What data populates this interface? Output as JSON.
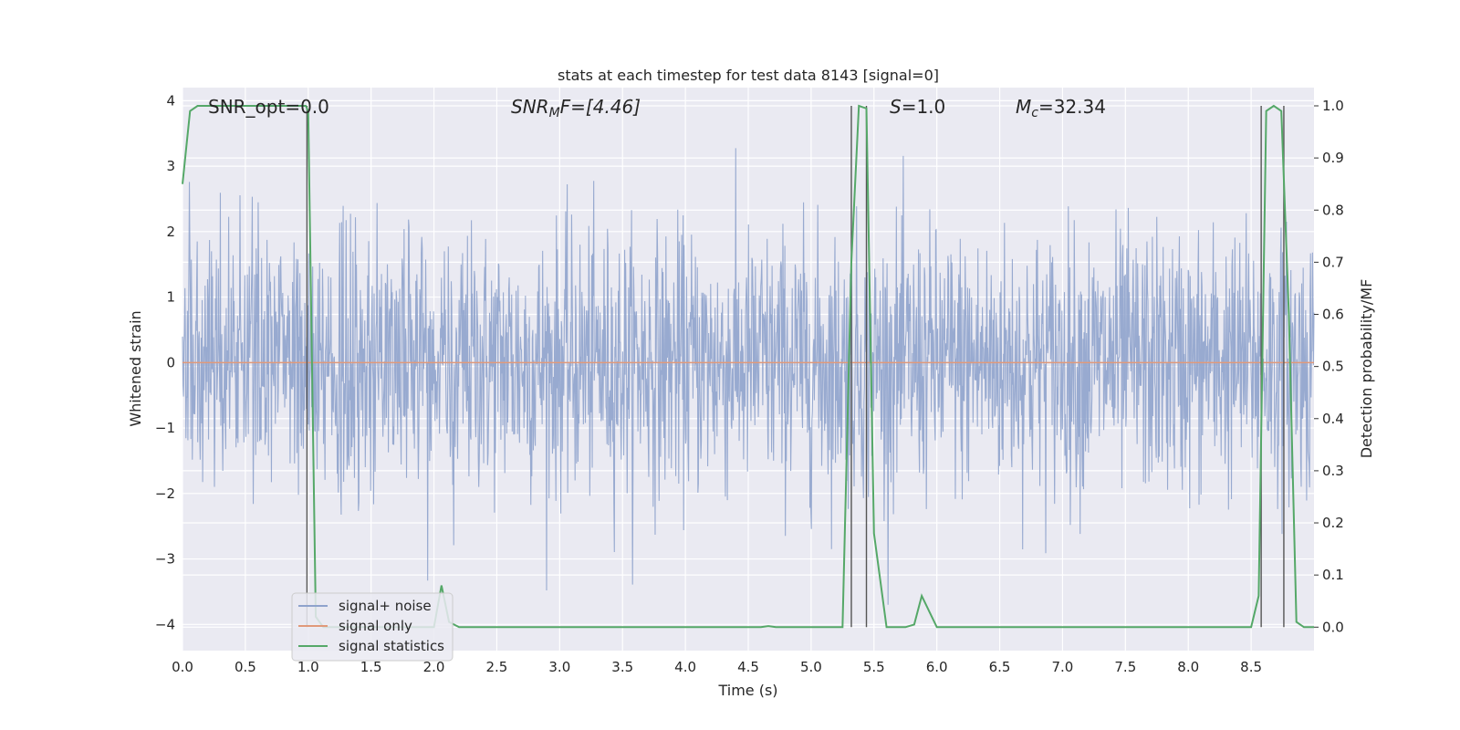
{
  "chart_data": {
    "type": "line",
    "title": "stats at each timestep for test data 8143 [signal=0]",
    "xlabel": "Time (s)",
    "ylabel_left": "Whitened strain",
    "ylabel_right": "Detection probability/MF",
    "xlim": [
      0.0,
      9.0
    ],
    "ylim_left": [
      -4.4,
      4.2
    ],
    "ylim_right": [
      -0.045,
      1.035
    ],
    "grid": true,
    "legend_placement": "lower-left",
    "x_ticks": [
      "0.0",
      "0.5",
      "1.0",
      "1.5",
      "2.0",
      "2.5",
      "3.0",
      "3.5",
      "4.0",
      "4.5",
      "5.0",
      "5.5",
      "6.0",
      "6.5",
      "7.0",
      "7.5",
      "8.0",
      "8.5"
    ],
    "y_left_ticks": [
      "4",
      "3",
      "2",
      "1",
      "0",
      "−1",
      "−2",
      "−3",
      "−4"
    ],
    "y_right_ticks": [
      "1.0",
      "0.9",
      "0.8",
      "0.7",
      "0.6",
      "0.5",
      "0.4",
      "0.3",
      "0.2",
      "0.1",
      "0.0"
    ],
    "annotations": {
      "snr_opt": "SNR_opt=0.0",
      "snr_mf_sym": "SNR",
      "snr_mf_sub": "M",
      "snr_mf_rest": "F=[4.46]",
      "s_sym": "S",
      "s_rest": "=1.0",
      "mc_sym": "M",
      "mc_sub": "c",
      "mc_rest": "=32.34"
    },
    "series": [
      {
        "name": "signal+ noise",
        "color": "#8fa3cc",
        "description_axis": "left",
        "amplitude_envelope": 3.7,
        "sample_count": 2304
      },
      {
        "name": "signal only",
        "color": "#e0997a",
        "axis": "left",
        "x": [
          0.0,
          9.0
        ],
        "y": [
          0.0,
          0.0
        ]
      },
      {
        "name": "signal statistics",
        "color": "#55a868",
        "axis": "right",
        "x": [
          0.0,
          0.06,
          0.12,
          0.9,
          0.98,
          1.0,
          1.06,
          1.12,
          1.2,
          1.5,
          1.8,
          2.0,
          2.06,
          2.12,
          2.2,
          3.0,
          4.0,
          4.6,
          4.66,
          4.72,
          5.0,
          5.25,
          5.32,
          5.38,
          5.44,
          5.5,
          5.6,
          5.75,
          5.82,
          5.88,
          5.94,
          6.0,
          6.5,
          7.0,
          7.5,
          8.0,
          8.5,
          8.56,
          8.62,
          8.68,
          8.74,
          8.8,
          8.86,
          8.92,
          9.0
        ],
        "y": [
          0.85,
          0.99,
          1.0,
          1.0,
          1.0,
          0.99,
          0.02,
          0.0,
          0.0,
          0.0,
          0.0,
          0.0,
          0.08,
          0.01,
          0.0,
          0.0,
          0.0,
          0.0,
          0.002,
          0.0,
          0.0,
          0.0,
          0.7,
          1.0,
          0.995,
          0.18,
          0.0,
          0.0,
          0.005,
          0.06,
          0.03,
          0.0,
          0.0,
          0.0,
          0.0,
          0.0,
          0.0,
          0.06,
          0.99,
          1.0,
          0.99,
          0.6,
          0.01,
          0.0,
          0.0
        ]
      }
    ],
    "vertical_markers_x": [
      0.99,
      5.32,
      5.44,
      8.58,
      8.76
    ]
  },
  "legend": {
    "items": [
      {
        "label": "signal+ noise",
        "color": "#8fa3cc"
      },
      {
        "label": "signal only",
        "color": "#e0997a"
      },
      {
        "label": "signal statistics",
        "color": "#55a868"
      }
    ]
  }
}
